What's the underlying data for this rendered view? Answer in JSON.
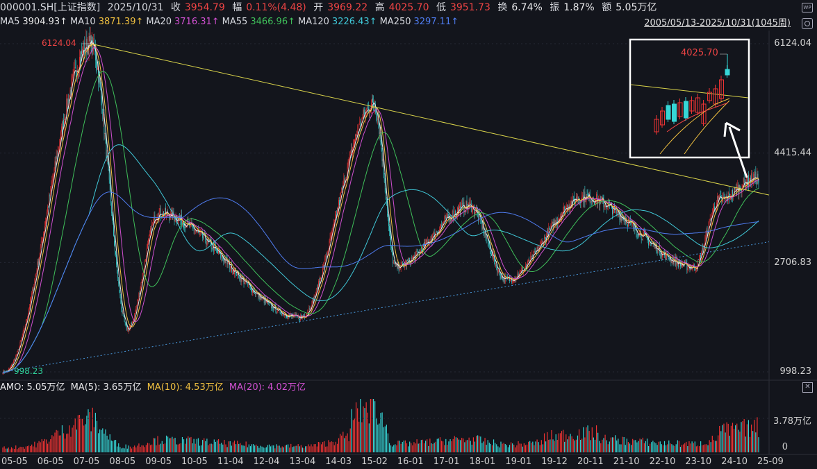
{
  "header": {
    "symbol": "000001.SH[上证指数]",
    "date": "2025/10/31",
    "close_label": "收",
    "close": "3954.79",
    "change_label": "幅",
    "change": "0.11%(4.48)",
    "open_label": "开",
    "open": "3969.22",
    "high_label": "高",
    "high": "4025.70",
    "low_label": "低",
    "low": "3951.73",
    "turnover_label": "换",
    "turnover": "6.74%",
    "amplitude_label": "振",
    "amplitude": "1.87%",
    "amount_label": "额",
    "amount": "5.05万亿",
    "wp_icon": "WP"
  },
  "ma_bar": {
    "items": [
      {
        "name": "MA5",
        "value": "3904.93↑",
        "color": "#e8e8e8"
      },
      {
        "name": "MA10",
        "value": "3871.39↑",
        "color": "#f0c040"
      },
      {
        "name": "MA20",
        "value": "3716.31↑",
        "color": "#d050d0"
      },
      {
        "name": "MA55",
        "value": "3466.96↑",
        "color": "#3fbf5a"
      },
      {
        "name": "MA120",
        "value": "3226.43↑",
        "color": "#40c8d8"
      },
      {
        "name": "MA250",
        "value": "3297.11↑",
        "color": "#4f7cf0"
      }
    ],
    "range": "2005/05/13-2025/10/31(1045周)"
  },
  "price_axis": {
    "labels": [
      "6124.04",
      "4415.44",
      "2706.83",
      "998.23"
    ]
  },
  "annotations": {
    "peak": "6124.04",
    "low": "998.23",
    "inset_high": "4025.70"
  },
  "volume_panel": {
    "amo_label": "AMO:",
    "amo": "5.05万亿",
    "ma5_label": "MA(5):",
    "ma5": "3.65万亿",
    "ma10_label": "MA(10):",
    "ma10": "4.53万亿",
    "ma20_label": "MA(20):",
    "ma20": "4.02万亿",
    "axis_top": "3.78万亿",
    "axis_zero": "0"
  },
  "x_axis": {
    "ticks": [
      "05-05",
      "06-05",
      "07-05",
      "08-05",
      "09-05",
      "10-05",
      "11-04",
      "12-04",
      "13-04",
      "14-03",
      "15-02",
      "16-01",
      "17-01",
      "18-01",
      "19-01",
      "19-12",
      "20-11",
      "21-10",
      "22-10",
      "23-10",
      "24-10",
      "25-09"
    ]
  },
  "chart_data": {
    "type": "candlestick",
    "period": "weekly",
    "range": "2005/05/13-2025/10/31",
    "key_points": [
      {
        "date": "2005-06",
        "value": 998.23
      },
      {
        "date": "2007-10",
        "value": 6124.04
      },
      {
        "date": "2008-10",
        "value": 1664
      },
      {
        "date": "2009-08",
        "value": 3478
      },
      {
        "date": "2013-06",
        "value": 1849
      },
      {
        "date": "2015-06",
        "value": 5178
      },
      {
        "date": "2016-01",
        "value": 2638
      },
      {
        "date": "2018-01",
        "value": 3587
      },
      {
        "date": "2019-01",
        "value": 2440
      },
      {
        "date": "2021-02",
        "value": 3731
      },
      {
        "date": "2024-02",
        "value": 2635
      },
      {
        "date": "2024-10",
        "value": 3674
      },
      {
        "date": "2025-10",
        "value": 4025.7
      }
    ],
    "last_close": 3954.79
  },
  "colors": {
    "up": "#ee3333",
    "down": "#36d6d6",
    "trendline": "#d8d24a",
    "dotted_support": "#4a9adf"
  }
}
